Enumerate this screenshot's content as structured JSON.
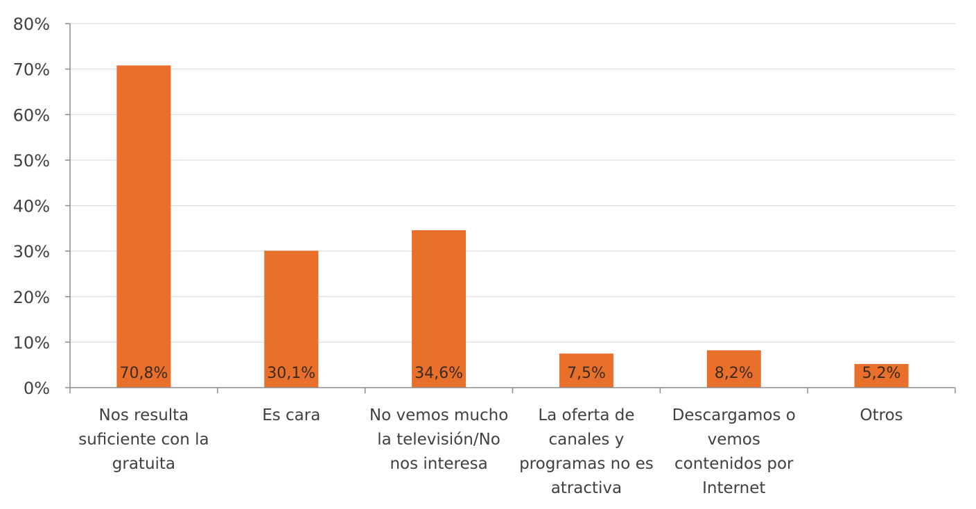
{
  "chart_data": {
    "type": "bar",
    "categories": [
      "Nos resulta suficiente con la gratuita",
      "Es cara",
      "No vemos mucho la televisión/No nos interesa",
      "La oferta de canales y programas no es atractiva",
      "Descargamos o vemos contenidos por Internet",
      "Otros"
    ],
    "category_lines": [
      [
        "Nos resulta",
        "suficiente con la",
        "gratuita"
      ],
      [
        "Es cara"
      ],
      [
        "No vemos mucho",
        "la televisión/No",
        "nos interesa"
      ],
      [
        "La oferta de",
        "canales y",
        "programas no es",
        "atractiva"
      ],
      [
        "Descargamos o",
        "vemos",
        "contenidos por",
        "Internet"
      ],
      [
        "Otros"
      ]
    ],
    "values": [
      70.8,
      30.1,
      34.6,
      7.5,
      8.2,
      5.2
    ],
    "data_labels": [
      "70,8%",
      "30,1%",
      "34,6%",
      "7,5%",
      "8,2%",
      "5,2%"
    ],
    "yticks": [
      0,
      10,
      20,
      30,
      40,
      50,
      60,
      70,
      80
    ],
    "ytick_labels": [
      "0%",
      "10%",
      "20%",
      "30%",
      "40%",
      "50%",
      "60%",
      "70%",
      "80%"
    ],
    "ylim": [
      0,
      80
    ],
    "grid": true,
    "bar_color": "#e8702a",
    "title": "",
    "xlabel": "",
    "ylabel": ""
  }
}
